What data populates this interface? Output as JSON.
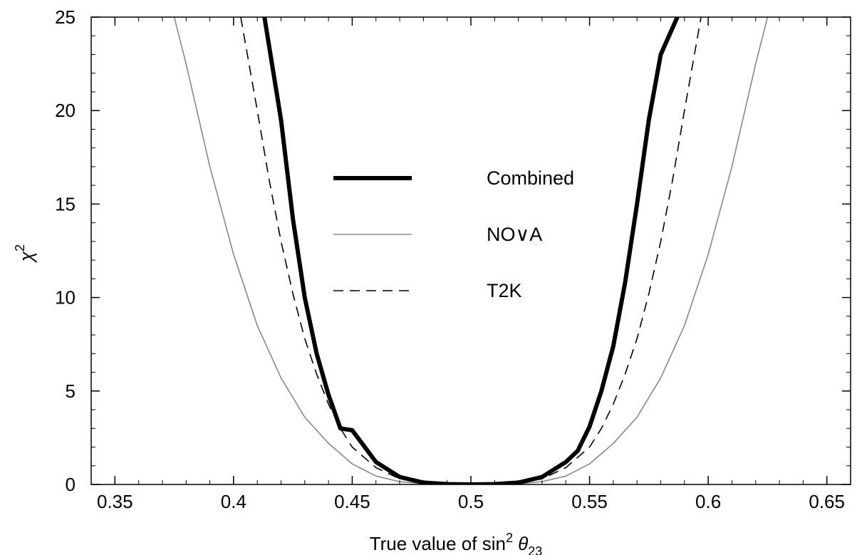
{
  "chart_data": {
    "type": "line",
    "xlabel": {
      "main": "True value of sin",
      "sup": "2",
      "theta": " θ",
      "sub": "23"
    },
    "ylabel": {
      "main": "χ",
      "sup": "2"
    },
    "xlim": [
      0.34,
      0.66
    ],
    "ylim": [
      0,
      25
    ],
    "xticks": [
      {
        "value": 0.35,
        "label": "0.35"
      },
      {
        "value": 0.4,
        "label": "0.4"
      },
      {
        "value": 0.45,
        "label": "0.45"
      },
      {
        "value": 0.5,
        "label": "0.5"
      },
      {
        "value": 0.55,
        "label": "0.55"
      },
      {
        "value": 0.6,
        "label": "0.6"
      },
      {
        "value": 0.65,
        "label": "0.65"
      }
    ],
    "yticks": [
      {
        "value": 0,
        "label": "0"
      },
      {
        "value": 5,
        "label": "5"
      },
      {
        "value": 10,
        "label": "10"
      },
      {
        "value": 15,
        "label": "15"
      },
      {
        "value": 20,
        "label": "20"
      },
      {
        "value": 25,
        "label": "25"
      }
    ],
    "grid": false,
    "legend_position": "center",
    "series": [
      {
        "name": "Combined",
        "style": "thick-solid",
        "color": "#000000",
        "x": [
          0.413,
          0.42,
          0.425,
          0.43,
          0.435,
          0.44,
          0.445,
          0.45,
          0.46,
          0.47,
          0.48,
          0.49,
          0.5,
          0.51,
          0.52,
          0.53,
          0.54,
          0.545,
          0.55,
          0.555,
          0.56,
          0.565,
          0.57,
          0.575,
          0.58,
          0.587
        ],
        "y": [
          25,
          19.5,
          14.2,
          10.0,
          7.0,
          4.8,
          3.0,
          2.9,
          1.2,
          0.4,
          0.1,
          0.02,
          0.0,
          0.02,
          0.1,
          0.4,
          1.2,
          1.8,
          3.1,
          5.0,
          7.4,
          10.8,
          15.0,
          19.5,
          23.0,
          25
        ]
      },
      {
        "name": "NO∨A",
        "style": "thin-solid",
        "color": "#888888",
        "x": [
          0.375,
          0.38,
          0.39,
          0.4,
          0.41,
          0.42,
          0.43,
          0.44,
          0.45,
          0.46,
          0.47,
          0.48,
          0.49,
          0.5,
          0.51,
          0.52,
          0.53,
          0.54,
          0.55,
          0.56,
          0.57,
          0.58,
          0.59,
          0.6,
          0.61,
          0.62,
          0.625
        ],
        "y": [
          25,
          22.5,
          17.0,
          12.3,
          8.5,
          5.7,
          3.6,
          2.2,
          1.1,
          0.45,
          0.15,
          0.04,
          0.01,
          0.0,
          0.01,
          0.04,
          0.15,
          0.45,
          1.1,
          2.2,
          3.6,
          5.7,
          8.5,
          12.3,
          17.0,
          22.5,
          25
        ]
      },
      {
        "name": "T2K",
        "style": "dashed",
        "color": "#000000",
        "x": [
          0.403,
          0.41,
          0.415,
          0.42,
          0.425,
          0.43,
          0.435,
          0.44,
          0.445,
          0.45,
          0.46,
          0.47,
          0.48,
          0.49,
          0.5,
          0.51,
          0.52,
          0.53,
          0.54,
          0.55,
          0.555,
          0.56,
          0.565,
          0.57,
          0.575,
          0.58,
          0.585,
          0.59,
          0.597
        ],
        "y": [
          25,
          20.0,
          16.3,
          13.0,
          10.2,
          7.8,
          5.9,
          4.3,
          3.0,
          2.0,
          0.9,
          0.3,
          0.08,
          0.01,
          0.0,
          0.01,
          0.08,
          0.3,
          0.9,
          2.0,
          3.0,
          4.3,
          5.9,
          7.8,
          10.2,
          13.0,
          16.3,
          20.0,
          25
        ]
      }
    ]
  }
}
